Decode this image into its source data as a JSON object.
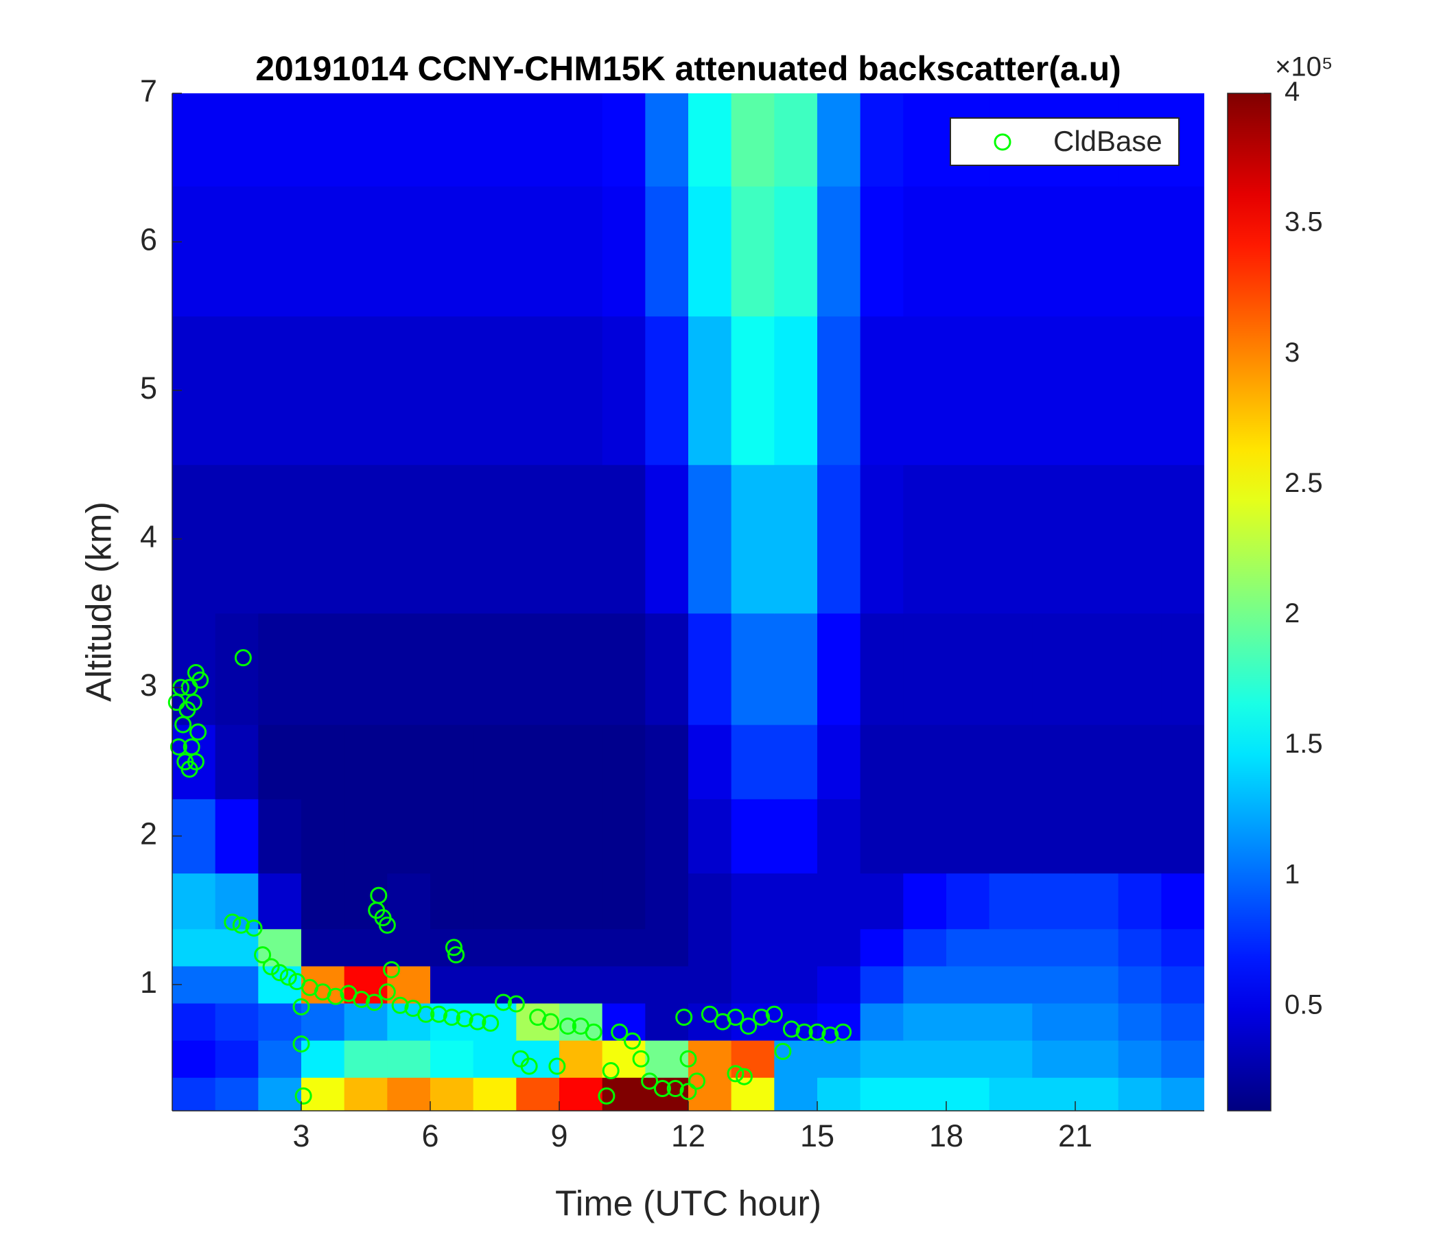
{
  "chart_data": {
    "type": "heatmap",
    "title": "20191014 CCNY-CHM15K attenuated backscatter(a.u)",
    "xlabel": "Time (UTC hour)",
    "ylabel": "Altitude (km)",
    "xlim": [
      0,
      24
    ],
    "xticks": [
      3,
      6,
      9,
      12,
      15,
      18,
      21
    ],
    "ylim": [
      0.15,
      7
    ],
    "yticks": [
      1,
      2,
      3,
      4,
      5,
      6,
      7
    ],
    "colormap": "jet",
    "clim": [
      0.1,
      4
    ],
    "cticks": [
      0.5,
      1,
      1.5,
      2,
      2.5,
      3,
      3.5,
      4
    ],
    "colorbar_exponent_label": "×10⁵",
    "legend": "upper right",
    "x": [
      0.5,
      1.5,
      2.5,
      3.5,
      4.5,
      5.5,
      6.5,
      7.5,
      8.5,
      9.5,
      10.5,
      11.5,
      12.5,
      13.5,
      14.5,
      15.5,
      16.5,
      17.5,
      18.5,
      19.5,
      20.5,
      21.5,
      22.5,
      23.5
    ],
    "y": [
      0.25,
      0.5,
      0.75,
      1.0,
      1.25,
      1.5,
      2.0,
      2.5,
      3.0,
      4.0,
      5.0,
      6.0,
      6.75
    ],
    "z": [
      [
        0.8,
        0.9,
        1.2,
        2.5,
        2.8,
        3.0,
        2.8,
        2.6,
        3.2,
        3.5,
        4.0,
        4.0,
        3.0,
        2.5,
        1.2,
        1.4,
        1.5,
        1.5,
        1.5,
        1.4,
        1.4,
        1.4,
        1.3,
        1.2
      ],
      [
        0.6,
        0.7,
        1.0,
        1.5,
        1.8,
        1.8,
        1.6,
        1.5,
        1.5,
        2.8,
        2.5,
        2.0,
        3.0,
        3.2,
        1.2,
        1.2,
        1.3,
        1.3,
        1.3,
        1.3,
        1.2,
        1.2,
        1.1,
        1.0
      ],
      [
        0.7,
        0.8,
        0.9,
        1.0,
        1.2,
        1.4,
        1.5,
        1.5,
        2.2,
        2.0,
        0.6,
        0.3,
        0.4,
        0.5,
        0.5,
        0.6,
        1.1,
        1.2,
        1.2,
        1.2,
        1.1,
        1.1,
        1.0,
        0.9
      ],
      [
        1.0,
        1.0,
        1.5,
        3.0,
        3.5,
        3.0,
        0.3,
        0.3,
        0.3,
        0.3,
        0.3,
        0.3,
        0.3,
        0.4,
        0.4,
        0.5,
        0.8,
        1.0,
        1.0,
        1.0,
        1.0,
        1.0,
        0.9,
        0.8
      ],
      [
        1.4,
        1.4,
        2.0,
        0.2,
        0.2,
        0.2,
        0.2,
        0.2,
        0.2,
        0.2,
        0.2,
        0.2,
        0.3,
        0.4,
        0.4,
        0.4,
        0.6,
        0.8,
        0.9,
        0.9,
        0.9,
        0.9,
        0.8,
        0.7
      ],
      [
        1.3,
        1.2,
        0.4,
        0.15,
        0.15,
        0.2,
        0.15,
        0.15,
        0.15,
        0.15,
        0.15,
        0.2,
        0.3,
        0.4,
        0.4,
        0.4,
        0.4,
        0.6,
        0.7,
        0.8,
        0.8,
        0.8,
        0.7,
        0.6
      ],
      [
        0.9,
        0.6,
        0.2,
        0.15,
        0.15,
        0.15,
        0.15,
        0.15,
        0.15,
        0.15,
        0.15,
        0.2,
        0.4,
        0.6,
        0.6,
        0.4,
        0.3,
        0.3,
        0.3,
        0.3,
        0.3,
        0.3,
        0.3,
        0.3
      ],
      [
        0.5,
        0.3,
        0.15,
        0.15,
        0.15,
        0.15,
        0.15,
        0.15,
        0.15,
        0.15,
        0.15,
        0.2,
        0.5,
        0.8,
        0.8,
        0.5,
        0.3,
        0.3,
        0.3,
        0.3,
        0.3,
        0.3,
        0.3,
        0.3
      ],
      [
        0.3,
        0.25,
        0.2,
        0.2,
        0.2,
        0.2,
        0.2,
        0.2,
        0.2,
        0.2,
        0.2,
        0.3,
        0.7,
        1.0,
        1.0,
        0.6,
        0.35,
        0.35,
        0.35,
        0.35,
        0.35,
        0.35,
        0.35,
        0.35
      ],
      [
        0.3,
        0.3,
        0.3,
        0.3,
        0.3,
        0.3,
        0.3,
        0.3,
        0.3,
        0.3,
        0.3,
        0.5,
        1.0,
        1.3,
        1.3,
        0.8,
        0.45,
        0.4,
        0.4,
        0.4,
        0.4,
        0.4,
        0.4,
        0.4
      ],
      [
        0.4,
        0.4,
        0.4,
        0.4,
        0.4,
        0.4,
        0.4,
        0.4,
        0.4,
        0.4,
        0.45,
        0.7,
        1.3,
        1.6,
        1.5,
        0.9,
        0.5,
        0.5,
        0.5,
        0.5,
        0.5,
        0.5,
        0.5,
        0.5
      ],
      [
        0.5,
        0.5,
        0.5,
        0.5,
        0.5,
        0.5,
        0.5,
        0.5,
        0.5,
        0.5,
        0.55,
        0.9,
        1.5,
        1.8,
        1.7,
        1.0,
        0.6,
        0.55,
        0.55,
        0.55,
        0.55,
        0.55,
        0.55,
        0.55
      ],
      [
        0.55,
        0.55,
        0.55,
        0.55,
        0.55,
        0.55,
        0.55,
        0.55,
        0.55,
        0.55,
        0.6,
        1.0,
        1.6,
        1.9,
        1.8,
        1.1,
        0.65,
        0.6,
        0.6,
        0.6,
        0.6,
        0.6,
        0.6,
        0.6
      ]
    ],
    "series": [
      {
        "name": "CldBase",
        "type": "scatter",
        "marker": "circle",
        "color": "#00ff00",
        "x": [
          0.1,
          0.15,
          0.2,
          0.25,
          0.3,
          0.35,
          0.4,
          0.45,
          0.5,
          0.55,
          0.6,
          0.65,
          0.4,
          0.55,
          1.65,
          1.4,
          1.6,
          1.9,
          2.1,
          2.3,
          2.5,
          2.7,
          2.9,
          3.0,
          3.0,
          3.05,
          3.2,
          3.5,
          3.8,
          4.1,
          4.4,
          4.7,
          4.75,
          4.8,
          4.9,
          5.0,
          5.1,
          5.0,
          5.3,
          5.6,
          5.9,
          6.2,
          6.5,
          6.55,
          6.6,
          6.8,
          7.1,
          7.4,
          7.7,
          8.0,
          8.1,
          8.3,
          8.5,
          8.8,
          8.95,
          9.2,
          9.5,
          9.8,
          10.1,
          10.2,
          10.4,
          10.7,
          10.9,
          11.1,
          11.4,
          11.7,
          11.9,
          12.0,
          12.0,
          12.2,
          12.5,
          12.8,
          13.1,
          13.1,
          13.3,
          13.4,
          13.7,
          14.0,
          14.2,
          14.4,
          14.7,
          15.0,
          15.3,
          15.6
        ],
        "values": [
          2.9,
          2.6,
          3.0,
          2.75,
          2.5,
          2.85,
          3.0,
          2.6,
          2.9,
          3.1,
          2.7,
          3.05,
          2.45,
          2.5,
          3.2,
          1.42,
          1.4,
          1.38,
          1.2,
          1.12,
          1.08,
          1.05,
          1.02,
          0.85,
          0.6,
          0.25,
          0.98,
          0.95,
          0.92,
          0.94,
          0.9,
          0.88,
          1.5,
          1.6,
          1.45,
          1.4,
          1.1,
          0.95,
          0.86,
          0.84,
          0.8,
          0.8,
          0.78,
          1.25,
          1.2,
          0.77,
          0.75,
          0.74,
          0.88,
          0.87,
          0.5,
          0.45,
          0.78,
          0.75,
          0.45,
          0.72,
          0.72,
          0.68,
          0.25,
          0.42,
          0.68,
          0.62,
          0.5,
          0.35,
          0.3,
          0.3,
          0.78,
          0.5,
          0.28,
          0.35,
          0.8,
          0.75,
          0.78,
          0.4,
          0.38,
          0.72,
          0.78,
          0.8,
          0.55,
          0.7,
          0.68,
          0.68,
          0.66,
          0.68
        ]
      }
    ]
  }
}
